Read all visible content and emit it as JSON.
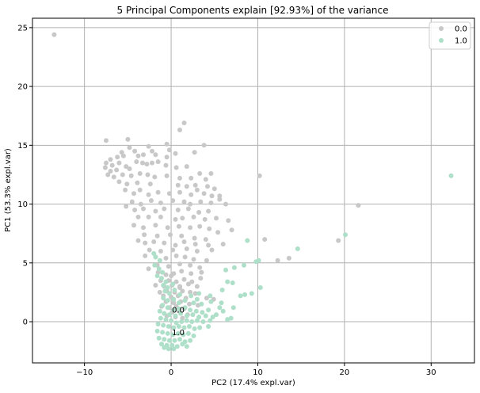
{
  "chart_data": {
    "type": "scatter",
    "title": "5 Principal Components explain [92.93%] of the variance",
    "xlabel": "PC2 (17.4% expl.var)",
    "ylabel": "PC1 (53.3% expl.var)",
    "xlim": [
      -16,
      35
    ],
    "ylim": [
      -3.5,
      25.8
    ],
    "xticks": [
      -10,
      0,
      10,
      20,
      30
    ],
    "yticks": [
      0,
      5,
      10,
      15,
      20,
      25
    ],
    "grid": true,
    "legend_position": "top-right",
    "annotations": [
      {
        "text": "0.0",
        "x": 0.1,
        "y": 1.0
      },
      {
        "text": "1.0",
        "x": 0.1,
        "y": -0.9
      }
    ],
    "series": [
      {
        "name": "0.0",
        "color": "#c8c8c8",
        "points": [
          [
            -13.5,
            24.4
          ],
          [
            1.5,
            16.9
          ],
          [
            1.0,
            16.3
          ],
          [
            3.8,
            15.0
          ],
          [
            -7.5,
            15.4
          ],
          [
            -5.0,
            15.5
          ],
          [
            -4.8,
            14.8
          ],
          [
            -4.2,
            14.5
          ],
          [
            -5.7,
            14.4
          ],
          [
            -2.6,
            14.9
          ],
          [
            -2.2,
            14.5
          ],
          [
            -0.5,
            15.1
          ],
          [
            -0.2,
            14.6
          ],
          [
            -5.5,
            14.1
          ],
          [
            -6.2,
            14.0
          ],
          [
            -7.0,
            13.8
          ],
          [
            -7.5,
            13.5
          ],
          [
            -6.8,
            13.3
          ],
          [
            -6.0,
            13.5
          ],
          [
            -3.8,
            14.1
          ],
          [
            -3.2,
            14.2
          ],
          [
            -1.8,
            14.2
          ],
          [
            -0.5,
            14.0
          ],
          [
            0.5,
            14.3
          ],
          [
            2.7,
            14.4
          ],
          [
            -7.6,
            13.1
          ],
          [
            -7.0,
            12.8
          ],
          [
            -6.3,
            12.9
          ],
          [
            -5.2,
            13.2
          ],
          [
            -4.8,
            13.0
          ],
          [
            -4.0,
            13.6
          ],
          [
            -3.3,
            13.5
          ],
          [
            -2.8,
            13.4
          ],
          [
            -2.2,
            13.5
          ],
          [
            -1.5,
            13.6
          ],
          [
            -0.6,
            13.3
          ],
          [
            0.6,
            13.1
          ],
          [
            1.8,
            13.2
          ],
          [
            -7.3,
            12.5
          ],
          [
            -6.6,
            12.3
          ],
          [
            -5.6,
            12.5
          ],
          [
            -4.6,
            12.4
          ],
          [
            -3.6,
            12.6
          ],
          [
            -2.7,
            12.5
          ],
          [
            -1.9,
            12.3
          ],
          [
            -0.5,
            12.4
          ],
          [
            1.0,
            12.2
          ],
          [
            2.3,
            12.2
          ],
          [
            3.3,
            12.6
          ],
          [
            4.0,
            12.1
          ],
          [
            4.6,
            12.6
          ],
          [
            -6.0,
            11.9
          ],
          [
            -5.1,
            11.7
          ],
          [
            -3.9,
            11.8
          ],
          [
            -2.4,
            11.7
          ],
          [
            0.8,
            11.6
          ],
          [
            1.8,
            11.5
          ],
          [
            2.8,
            11.6
          ],
          [
            4.2,
            11.5
          ],
          [
            5.0,
            11.3
          ],
          [
            10.2,
            12.4
          ],
          [
            -5.3,
            11.2
          ],
          [
            -4.3,
            10.9
          ],
          [
            -3.6,
            11.2
          ],
          [
            -2.6,
            10.8
          ],
          [
            -1.5,
            11.0
          ],
          [
            -0.2,
            10.9
          ],
          [
            1.0,
            11.0
          ],
          [
            2.3,
            10.8
          ],
          [
            3.0,
            11.2
          ],
          [
            3.8,
            10.9
          ],
          [
            4.7,
            10.7
          ],
          [
            5.6,
            10.7
          ],
          [
            -4.5,
            10.2
          ],
          [
            -3.5,
            10.0
          ],
          [
            -2.3,
            10.3
          ],
          [
            -1.2,
            10.1
          ],
          [
            0.2,
            10.3
          ],
          [
            1.5,
            10.2
          ],
          [
            2.2,
            10.0
          ],
          [
            3.4,
            10.2
          ],
          [
            4.6,
            10.1
          ],
          [
            5.6,
            10.4
          ],
          [
            6.3,
            10.0
          ],
          [
            21.6,
            9.9
          ],
          [
            -5.2,
            9.8
          ],
          [
            -4.2,
            9.5
          ],
          [
            -3.2,
            9.6
          ],
          [
            -1.8,
            9.4
          ],
          [
            -0.8,
            9.6
          ],
          [
            0.8,
            9.5
          ],
          [
            2.0,
            9.6
          ],
          [
            3.2,
            9.3
          ],
          [
            4.3,
            9.4
          ],
          [
            -3.8,
            8.9
          ],
          [
            -2.6,
            8.9
          ],
          [
            -1.2,
            8.9
          ],
          [
            0.5,
            8.7
          ],
          [
            1.3,
            8.8
          ],
          [
            2.6,
            8.9
          ],
          [
            3.9,
            8.7
          ],
          [
            5.2,
            8.8
          ],
          [
            6.6,
            8.6
          ],
          [
            -4.3,
            8.2
          ],
          [
            -3.2,
            8.0
          ],
          [
            -1.8,
            8.2
          ],
          [
            -0.4,
            8.0
          ],
          [
            0.9,
            8.1
          ],
          [
            2.2,
            8.0
          ],
          [
            3.3,
            8.1
          ],
          [
            4.4,
            7.9
          ],
          [
            5.4,
            7.6
          ],
          [
            7.0,
            7.8
          ],
          [
            -3.1,
            7.4
          ],
          [
            -1.6,
            7.3
          ],
          [
            -0.1,
            7.4
          ],
          [
            1.2,
            7.3
          ],
          [
            2.7,
            7.1
          ],
          [
            4.0,
            7.0
          ],
          [
            -3.8,
            6.9
          ],
          [
            -3.0,
            6.7
          ],
          [
            -2.0,
            6.8
          ],
          [
            -0.8,
            6.7
          ],
          [
            0.5,
            6.5
          ],
          [
            1.5,
            6.8
          ],
          [
            2.8,
            6.6
          ],
          [
            4.3,
            6.5
          ],
          [
            6.0,
            6.6
          ],
          [
            10.8,
            7.0
          ],
          [
            19.3,
            6.9
          ],
          [
            -2.5,
            6.1
          ],
          [
            -1.2,
            6.0
          ],
          [
            0.2,
            6.1
          ],
          [
            1.8,
            6.2
          ],
          [
            3.0,
            6.0
          ],
          [
            4.7,
            6.1
          ],
          [
            -3.0,
            5.6
          ],
          [
            -1.8,
            5.5
          ],
          [
            -0.6,
            5.4
          ],
          [
            0.6,
            5.6
          ],
          [
            1.6,
            5.5
          ],
          [
            2.6,
            5.3
          ],
          [
            4.1,
            5.2
          ],
          [
            12.3,
            5.2
          ],
          [
            13.6,
            5.4
          ],
          [
            -1.6,
            4.8
          ],
          [
            -0.3,
            4.7
          ],
          [
            1.0,
            4.9
          ],
          [
            2.2,
            4.8
          ],
          [
            3.3,
            4.6
          ],
          [
            -2.6,
            4.5
          ],
          [
            -1.5,
            4.2
          ],
          [
            -0.6,
            4.0
          ],
          [
            0.3,
            4.1
          ],
          [
            1.2,
            4.3
          ],
          [
            2.3,
            4.1
          ],
          [
            3.5,
            4.2
          ],
          [
            -1.2,
            3.5
          ],
          [
            -0.3,
            3.5
          ],
          [
            0.6,
            3.4
          ],
          [
            1.5,
            3.6
          ],
          [
            2.4,
            3.4
          ],
          [
            -1.8,
            3.1
          ],
          [
            -0.8,
            3.0
          ],
          [
            0.1,
            3.1
          ],
          [
            1.0,
            3.0
          ],
          [
            2.0,
            3.2
          ],
          [
            3.0,
            3.0
          ],
          [
            -0.5,
            2.6
          ],
          [
            0.4,
            2.5
          ],
          [
            1.3,
            2.6
          ],
          [
            2.2,
            2.5
          ],
          [
            -0.9,
            2.2
          ],
          [
            0.0,
            2.1
          ],
          [
            0.8,
            2.2
          ],
          [
            1.7,
            2.0
          ],
          [
            4.1,
            2.0
          ],
          [
            4.9,
            1.9
          ],
          [
            -0.6,
            1.7
          ],
          [
            0.3,
            1.6
          ],
          [
            1.1,
            1.7
          ],
          [
            2.1,
            1.5
          ],
          [
            3.1,
            1.4
          ],
          [
            -1.1,
            1.3
          ],
          [
            -0.2,
            1.2
          ],
          [
            0.6,
            1.3
          ],
          [
            1.5,
            1.1
          ],
          [
            0.1,
            0.8
          ],
          [
            0.9,
            0.9
          ],
          [
            1.9,
            0.6
          ],
          [
            -0.5,
            0.5
          ],
          [
            0.5,
            0.4
          ],
          [
            1.3,
            0.3
          ],
          [
            1.0,
            2.9
          ],
          [
            0.0,
            3.9
          ],
          [
            -1.3,
            2.5
          ],
          [
            2.8,
            2.4
          ],
          [
            3.4,
            3.7
          ]
        ]
      },
      {
        "name": "1.0",
        "color": "#aedfc9",
        "points": [
          [
            32.3,
            12.4
          ],
          [
            20.1,
            7.4
          ],
          [
            14.6,
            6.2
          ],
          [
            8.8,
            6.9
          ],
          [
            9.8,
            5.1
          ],
          [
            10.1,
            5.2
          ],
          [
            8.4,
            4.8
          ],
          [
            7.3,
            4.6
          ],
          [
            6.3,
            4.4
          ],
          [
            -2.0,
            5.8
          ],
          [
            -1.8,
            5.5
          ],
          [
            -1.3,
            5.2
          ],
          [
            -1.9,
            4.8
          ],
          [
            -1.4,
            4.5
          ],
          [
            -1.0,
            4.2
          ],
          [
            -1.6,
            3.9
          ],
          [
            -1.1,
            3.7
          ],
          [
            -0.6,
            3.4
          ],
          [
            -0.9,
            3.1
          ],
          [
            -0.4,
            2.9
          ],
          [
            0.2,
            3.2
          ],
          [
            -0.7,
            2.6
          ],
          [
            -0.2,
            2.4
          ],
          [
            0.4,
            2.7
          ],
          [
            10.3,
            2.9
          ],
          [
            9.3,
            2.4
          ],
          [
            8.5,
            2.3
          ],
          [
            8.0,
            2.2
          ],
          [
            7.1,
            3.3
          ],
          [
            6.5,
            3.4
          ],
          [
            5.9,
            2.7
          ],
          [
            4.5,
            2.2
          ],
          [
            3.2,
            2.4
          ],
          [
            2.3,
            2.2
          ],
          [
            -0.9,
            2.0
          ],
          [
            -0.4,
            1.8
          ],
          [
            0.3,
            1.9
          ],
          [
            0.9,
            1.6
          ],
          [
            1.6,
            1.8
          ],
          [
            2.6,
            1.6
          ],
          [
            3.5,
            1.5
          ],
          [
            4.6,
            1.7
          ],
          [
            5.8,
            1.6
          ],
          [
            5.6,
            1.2
          ],
          [
            4.3,
            1.0
          ],
          [
            3.6,
            0.8
          ],
          [
            2.9,
            0.9
          ],
          [
            2.2,
            1.0
          ],
          [
            1.6,
            1.2
          ],
          [
            0.9,
            1.1
          ],
          [
            0.3,
            1.0
          ],
          [
            -0.4,
            1.2
          ],
          [
            -1.0,
            1.4
          ],
          [
            -1.3,
            0.9
          ],
          [
            -0.8,
            0.7
          ],
          [
            -0.2,
            0.6
          ],
          [
            0.5,
            0.5
          ],
          [
            1.1,
            0.7
          ],
          [
            1.8,
            0.5
          ],
          [
            2.5,
            0.6
          ],
          [
            3.2,
            0.4
          ],
          [
            4.0,
            0.5
          ],
          [
            4.8,
            0.4
          ],
          [
            6.0,
            0.9
          ],
          [
            6.5,
            0.2
          ],
          [
            4.5,
            0.1
          ],
          [
            3.7,
            0.0
          ],
          [
            3.0,
            0.1
          ],
          [
            2.4,
            0.0
          ],
          [
            1.8,
            0.1
          ],
          [
            1.2,
            0.0
          ],
          [
            0.6,
            -0.1
          ],
          [
            0.0,
            0.1
          ],
          [
            -0.6,
            0.2
          ],
          [
            -1.2,
            0.3
          ],
          [
            -1.5,
            -0.2
          ],
          [
            -0.9,
            -0.3
          ],
          [
            -0.3,
            -0.4
          ],
          [
            0.3,
            -0.5
          ],
          [
            0.9,
            -0.4
          ],
          [
            1.5,
            -0.5
          ],
          [
            2.1,
            -0.4
          ],
          [
            2.7,
            -0.6
          ],
          [
            3.3,
            -0.5
          ],
          [
            4.3,
            -0.4
          ],
          [
            -1.6,
            -0.8
          ],
          [
            -1.0,
            -0.9
          ],
          [
            -0.4,
            -1.0
          ],
          [
            0.2,
            -1.1
          ],
          [
            0.8,
            -1.0
          ],
          [
            1.4,
            -1.1
          ],
          [
            2.0,
            -1.0
          ],
          [
            2.6,
            -1.2
          ],
          [
            -1.4,
            -1.4
          ],
          [
            -0.8,
            -1.5
          ],
          [
            -0.2,
            -1.6
          ],
          [
            0.4,
            -1.6
          ],
          [
            1.0,
            -1.5
          ],
          [
            1.6,
            -1.7
          ],
          [
            2.2,
            -1.6
          ],
          [
            -1.1,
            -1.9
          ],
          [
            -0.5,
            -2.0
          ],
          [
            0.1,
            -2.0
          ],
          [
            0.7,
            -2.1
          ],
          [
            1.3,
            -1.9
          ],
          [
            -0.3,
            -2.3
          ],
          [
            0.3,
            -2.3
          ],
          [
            -0.8,
            -2.2
          ],
          [
            1.8,
            -2.1
          ],
          [
            3.0,
            1.9
          ],
          [
            5.2,
            0.6
          ],
          [
            6.9,
            0.3
          ],
          [
            7.2,
            1.2
          ],
          [
            1.0,
            2.3
          ]
        ]
      }
    ]
  }
}
